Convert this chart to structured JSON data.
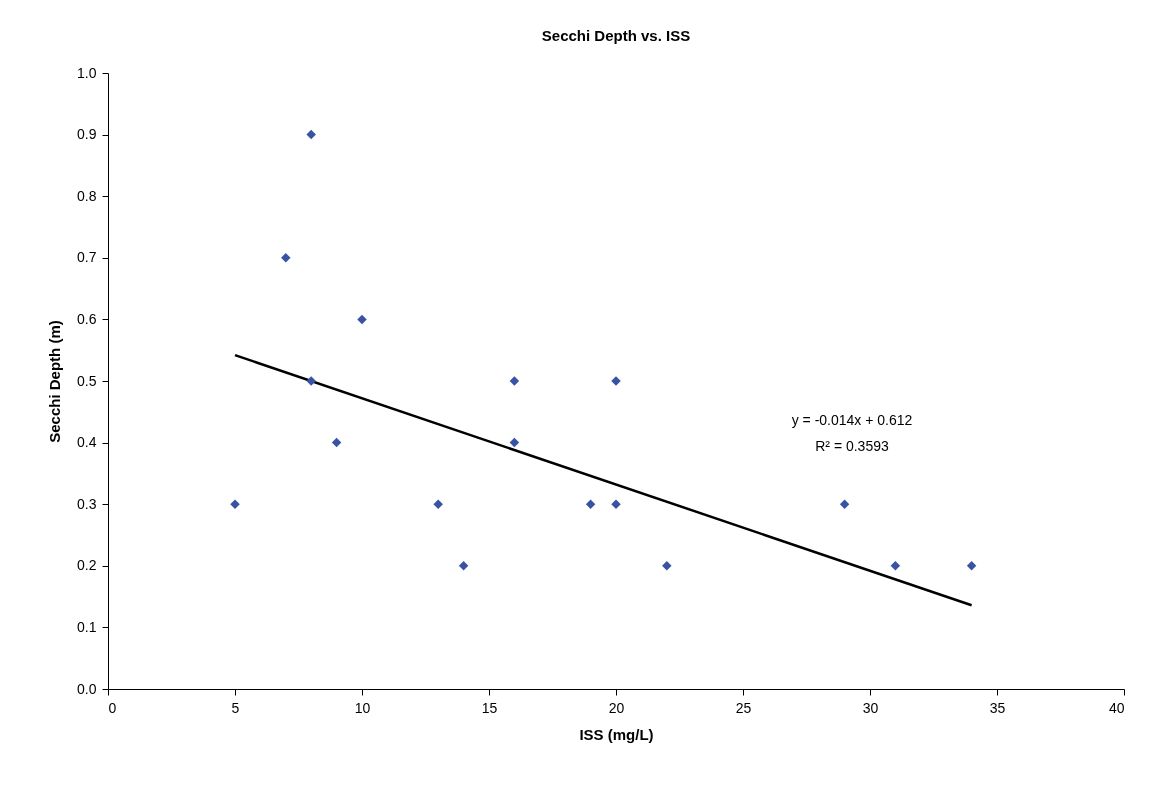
{
  "chart_data": {
    "type": "scatter",
    "title": "Secchi Depth vs. ISS",
    "xlabel": "ISS (mg/L)",
    "ylabel": "Secchi Depth (m)",
    "xlim": [
      0,
      40
    ],
    "xticks": [
      0,
      5,
      10,
      15,
      20,
      25,
      30,
      35,
      40
    ],
    "ylim": [
      0,
      1
    ],
    "yticks": [
      {
        "value": 0,
        "label": "0.0"
      },
      {
        "value": 0.1,
        "label": "0.1"
      },
      {
        "value": 0.2,
        "label": "0.2"
      },
      {
        "value": 0.3,
        "label": "0.3"
      },
      {
        "value": 0.4,
        "label": "0.4"
      },
      {
        "value": 0.5,
        "label": "0.5"
      },
      {
        "value": 0.6,
        "label": "0.6"
      },
      {
        "value": 0.7,
        "label": "0.7"
      },
      {
        "value": 0.8,
        "label": "0.8"
      },
      {
        "value": 0.9,
        "label": "0.9"
      },
      {
        "value": 1,
        "label": "1.0"
      }
    ],
    "marker": "diamond",
    "series": [
      {
        "color": "#3953a4",
        "x": [
          5,
          7,
          8,
          8,
          9,
          10,
          13,
          14,
          16,
          16,
          19,
          20,
          20,
          22,
          29,
          31,
          34
        ],
        "values": [
          0.3,
          0.7,
          0.9,
          0.5,
          0.4,
          0.6,
          0.3,
          0.2,
          0.5,
          0.4,
          0.3,
          0.5,
          0.3,
          0.2,
          0.3,
          0.2,
          0.2
        ]
      },
      {
        "type": "line",
        "marker": "none",
        "color": "#000000",
        "x": [
          5,
          34
        ],
        "values": [
          0.542,
          0.136
        ]
      }
    ],
    "annotations": [
      "y = -0.014x + 0.612",
      "R² = 0.3593"
    ]
  }
}
